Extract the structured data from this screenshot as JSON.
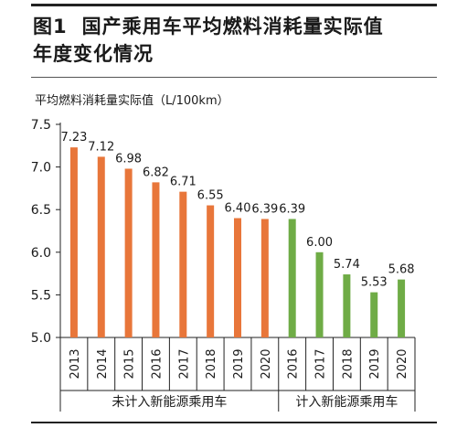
{
  "header": {
    "fig_label": "图1",
    "title_line1": "国产乘用车平均燃料消耗量实际值",
    "title_line2": "年度变化情况"
  },
  "chart_data": {
    "type": "bar",
    "ylabel": "平均燃料消耗量实际值（L/100km）",
    "xlabel": "",
    "ylim": [
      5.0,
      7.5
    ],
    "yticks": [
      "5.0",
      "5.5",
      "6.0",
      "6.5",
      "7.0",
      "7.5"
    ],
    "grid": false,
    "groups": [
      {
        "label": "未计入新能源乘用车",
        "color": "#e8763a",
        "categories": [
          "2013",
          "2014",
          "2015",
          "2016",
          "2017",
          "2018",
          "2019",
          "2020"
        ],
        "values": [
          7.23,
          7.12,
          6.98,
          6.82,
          6.71,
          6.55,
          6.4,
          6.39
        ],
        "value_labels": [
          "7.23",
          "7.12",
          "6.98",
          "6.82",
          "6.71",
          "6.55",
          "6.40",
          "6.39"
        ]
      },
      {
        "label": "计入新能源乘用车",
        "color": "#6fac46",
        "categories": [
          "2016",
          "2017",
          "2018",
          "2019",
          "2020"
        ],
        "values": [
          6.39,
          6.0,
          5.74,
          5.53,
          5.68
        ],
        "value_labels": [
          "6.39",
          "6.00",
          "5.74",
          "5.53",
          "5.68"
        ]
      }
    ]
  }
}
